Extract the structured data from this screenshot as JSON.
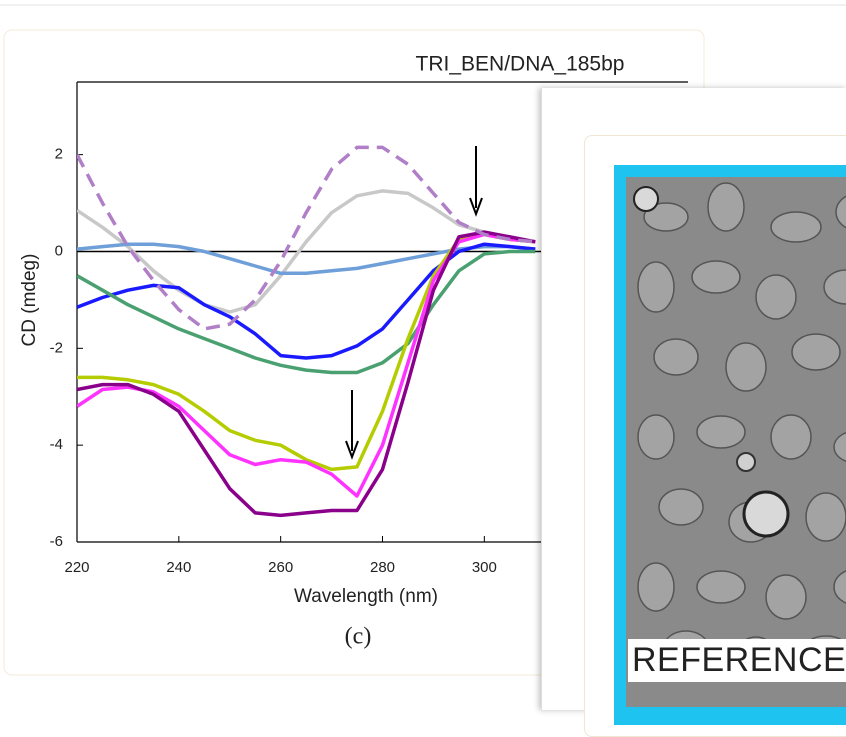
{
  "chart_data": {
    "type": "line",
    "title": "TRI_BEN/DNA_185bp",
    "x_label": "Wavelength (nm)",
    "y_label": "CD (mdeg)",
    "x": [
      220,
      225,
      230,
      235,
      240,
      245,
      250,
      255,
      260,
      265,
      270,
      275,
      280,
      285,
      290,
      295,
      300,
      305,
      310
    ],
    "series": [
      {
        "color": "#c8c8c8",
        "style": "solid",
        "values": [
          0.85,
          0.5,
          0.1,
          -0.4,
          -0.8,
          -1.1,
          -1.25,
          -1.1,
          -0.5,
          0.2,
          0.8,
          1.15,
          1.25,
          1.2,
          0.9,
          0.55,
          0.4,
          0.3,
          0.2
        ]
      },
      {
        "color": "#6f9fd8",
        "style": "solid",
        "values": [
          0.05,
          0.1,
          0.15,
          0.15,
          0.1,
          0,
          -0.15,
          -0.3,
          -0.45,
          -0.45,
          -0.4,
          -0.35,
          -0.25,
          -0.15,
          -0.05,
          0.05,
          0.1,
          0.1,
          0.05
        ]
      },
      {
        "color": "#1a1aff",
        "style": "solid",
        "values": [
          -1.15,
          -0.95,
          -0.8,
          -0.7,
          -0.75,
          -1.1,
          -1.35,
          -1.7,
          -2.15,
          -2.2,
          -2.15,
          -1.95,
          -1.6,
          -1.0,
          -0.4,
          0.0,
          0.15,
          0.1,
          0.05
        ]
      },
      {
        "color": "#4aa070",
        "style": "solid",
        "values": [
          -0.5,
          -0.8,
          -1.1,
          -1.35,
          -1.6,
          -1.8,
          -2.0,
          -2.2,
          -2.35,
          -2.45,
          -2.5,
          -2.5,
          -2.3,
          -1.9,
          -1.1,
          -0.4,
          -0.05,
          0.0,
          0.0
        ]
      },
      {
        "color": "#b5cc00",
        "style": "solid",
        "values": [
          -2.6,
          -2.6,
          -2.65,
          -2.75,
          -2.95,
          -3.3,
          -3.7,
          -3.9,
          -4.0,
          -4.3,
          -4.5,
          -4.45,
          -3.3,
          -1.8,
          -0.5,
          0.25,
          0.35,
          0.25,
          0.2
        ]
      },
      {
        "color": "#ff33ff",
        "style": "solid",
        "values": [
          -3.2,
          -2.85,
          -2.8,
          -2.9,
          -3.2,
          -3.7,
          -4.2,
          -4.4,
          -4.3,
          -4.35,
          -4.6,
          -5.05,
          -4.0,
          -2.3,
          -0.6,
          0.2,
          0.35,
          0.25,
          0.2
        ]
      },
      {
        "color": "#8b008b",
        "style": "solid",
        "values": [
          -2.85,
          -2.75,
          -2.75,
          -2.95,
          -3.3,
          -4.1,
          -4.9,
          -5.4,
          -5.45,
          -5.4,
          -5.35,
          -5.35,
          -4.5,
          -2.7,
          -0.8,
          0.3,
          0.4,
          0.3,
          0.2
        ]
      },
      {
        "color": "#b07fc8",
        "style": "dashed",
        "values": [
          2.0,
          1.0,
          0.1,
          -0.6,
          -1.2,
          -1.6,
          -1.5,
          -1.0,
          -0.2,
          0.8,
          1.7,
          2.15,
          2.15,
          1.8,
          1.2,
          0.6,
          0.35,
          0.25,
          0.2
        ]
      }
    ],
    "xlim": [
      220,
      340
    ],
    "ylim": [
      -6,
      3.5
    ],
    "xticks": [
      220,
      240,
      260,
      280,
      300
    ],
    "yticks": [
      2,
      0,
      -2,
      -4,
      -6
    ]
  },
  "caption": "(c)",
  "panel": {
    "label": "REFERENCE"
  }
}
